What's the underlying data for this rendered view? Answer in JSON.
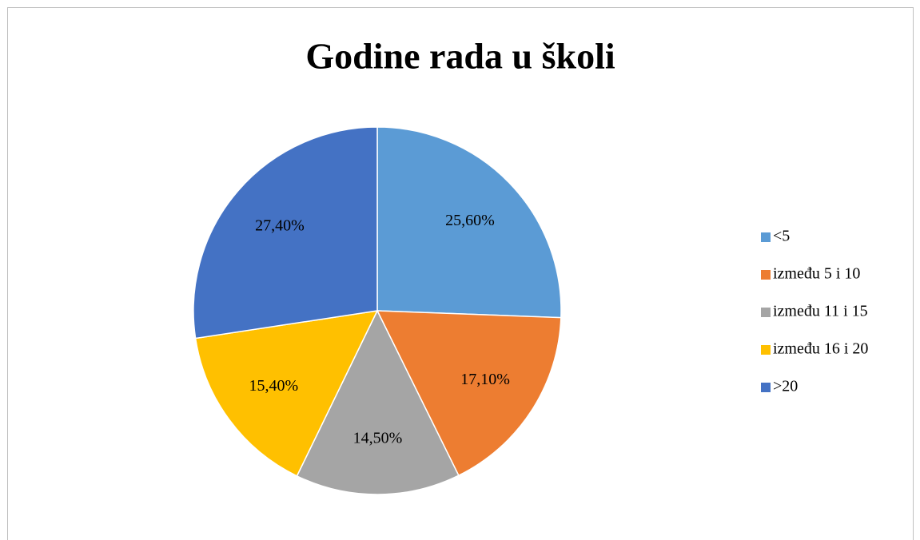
{
  "chart_data": {
    "type": "pie",
    "title": "Godine rada u školi",
    "categories": [
      "<5",
      "između 5 i 10",
      "između 11 i 15",
      "između 16 i 20",
      ">20"
    ],
    "values": [
      25.6,
      17.1,
      14.5,
      15.4,
      27.4
    ],
    "value_labels": [
      "25,60%",
      "17,10%",
      "14,50%",
      "15,40%",
      "27,40%"
    ],
    "colors": [
      "#5b9bd5",
      "#ed7d31",
      "#a5a5a5",
      "#ffc000",
      "#4472c4"
    ],
    "legend": "right"
  }
}
